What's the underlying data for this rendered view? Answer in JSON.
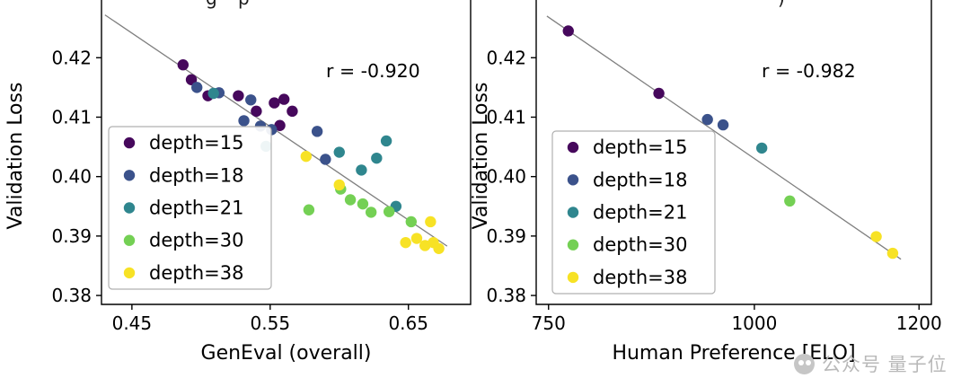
{
  "figure": {
    "background": "#ffffff",
    "cropped_title_fragments": [
      {
        "text": "g",
        "x": 229
      },
      {
        "text": "p",
        "x": 265
      },
      {
        "text": ")",
        "x": 866
      }
    ],
    "watermark": {
      "icon": "qbitai-circle-logo",
      "text": "公众号 量子位",
      "color": "#b9b9b9"
    }
  },
  "chart_data": [
    {
      "type": "scatter",
      "title": "",
      "xlabel": "GenEval (overall)",
      "ylabel": "Validation Loss",
      "annotation": "r = -0.920",
      "xlim": [
        0.428,
        0.695
      ],
      "ylim": [
        0.3785,
        0.4285
      ],
      "xticks": [
        {
          "v": 0.45,
          "label": "0.45"
        },
        {
          "v": 0.55,
          "label": "0.55"
        },
        {
          "v": 0.65,
          "label": "0.65"
        }
      ],
      "yticks": [
        {
          "v": 0.38,
          "label": "0.38"
        },
        {
          "v": 0.39,
          "label": "0.39"
        },
        {
          "v": 0.4,
          "label": "0.40"
        },
        {
          "v": 0.41,
          "label": "0.41"
        },
        {
          "v": 0.42,
          "label": "0.42"
        }
      ],
      "grid": false,
      "legend_position": "lower-left",
      "trendline": {
        "x1": 0.4305,
        "y1": 0.4272,
        "x2": 0.678,
        "y2": 0.3883,
        "color": "#7f7f7f"
      },
      "series": [
        {
          "name": "depth=15",
          "color": "#46085c",
          "points": [
            [
              0.487,
              0.4188
            ],
            [
              0.493,
              0.4163
            ],
            [
              0.505,
              0.4136
            ],
            [
              0.527,
              0.4136
            ],
            [
              0.54,
              0.411
            ],
            [
              0.553,
              0.4124
            ],
            [
              0.56,
              0.413
            ],
            [
              0.566,
              0.411
            ],
            [
              0.557,
              0.4086
            ]
          ]
        },
        {
          "name": "depth=18",
          "color": "#3b528b",
          "points": [
            [
              0.497,
              0.415
            ],
            [
              0.513,
              0.4141
            ],
            [
              0.531,
              0.4094
            ],
            [
              0.536,
              0.4129
            ],
            [
              0.543,
              0.4085
            ],
            [
              0.551,
              0.4079
            ],
            [
              0.584,
              0.4076
            ],
            [
              0.59,
              0.4029
            ]
          ]
        },
        {
          "name": "depth=21",
          "color": "#2f868e",
          "points": [
            [
              0.509,
              0.414
            ],
            [
              0.547,
              0.4051
            ],
            [
              0.6,
              0.4041
            ],
            [
              0.616,
              0.4011
            ],
            [
              0.627,
              0.4031
            ],
            [
              0.634,
              0.406
            ],
            [
              0.641,
              0.395
            ]
          ]
        },
        {
          "name": "depth=30",
          "color": "#74d054",
          "points": [
            [
              0.578,
              0.3944
            ],
            [
              0.601,
              0.3979
            ],
            [
              0.608,
              0.3961
            ],
            [
              0.617,
              0.3954
            ],
            [
              0.623,
              0.394
            ],
            [
              0.636,
              0.3941
            ],
            [
              0.652,
              0.3924
            ]
          ]
        },
        {
          "name": "depth=38",
          "color": "#f7e225",
          "points": [
            [
              0.576,
              0.4034
            ],
            [
              0.6,
              0.3986
            ],
            [
              0.648,
              0.3889
            ],
            [
              0.656,
              0.3896
            ],
            [
              0.662,
              0.3884
            ],
            [
              0.666,
              0.3924
            ],
            [
              0.668,
              0.3889
            ],
            [
              0.672,
              0.3879
            ]
          ]
        }
      ]
    },
    {
      "type": "scatter",
      "title": "",
      "xlabel": "Human Preference [ELO]",
      "ylabel": "Validation Loss",
      "annotation": "r = -0.982",
      "xlim": [
        735,
        1215
      ],
      "ylim": [
        0.3785,
        0.4285
      ],
      "xticks": [
        {
          "v": 750,
          "label": "750"
        },
        {
          "v": 1000,
          "label": "1000"
        },
        {
          "v": 1200,
          "label": "1200"
        }
      ],
      "yticks": [
        {
          "v": 0.38,
          "label": "0.38"
        },
        {
          "v": 0.39,
          "label": "0.39"
        },
        {
          "v": 0.4,
          "label": "0.40"
        },
        {
          "v": 0.41,
          "label": "0.41"
        },
        {
          "v": 0.42,
          "label": "0.42"
        }
      ],
      "grid": false,
      "legend_position": "lower-left",
      "trendline": {
        "x1": 748,
        "y1": 0.427,
        "x2": 1178,
        "y2": 0.3861,
        "color": "#7f7f7f"
      },
      "series": [
        {
          "name": "depth=15",
          "color": "#46085c",
          "points": [
            [
              774,
              0.4245
            ],
            [
              884,
              0.414
            ]
          ]
        },
        {
          "name": "depth=18",
          "color": "#3b528b",
          "points": [
            [
              943,
              0.4096
            ],
            [
              962,
              0.4087
            ]
          ]
        },
        {
          "name": "depth=21",
          "color": "#2f868e",
          "points": [
            [
              1009,
              0.4048
            ]
          ]
        },
        {
          "name": "depth=30",
          "color": "#74d054",
          "points": [
            [
              1043,
              0.3959
            ]
          ]
        },
        {
          "name": "depth=38",
          "color": "#f7e225",
          "points": [
            [
              1148,
              0.3899
            ],
            [
              1168,
              0.3871
            ]
          ]
        }
      ]
    }
  ]
}
